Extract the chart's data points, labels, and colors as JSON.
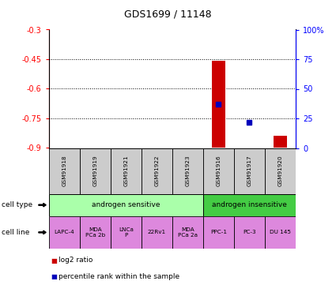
{
  "title": "GDS1699 / 11148",
  "samples": [
    "GSM91918",
    "GSM91919",
    "GSM91921",
    "GSM91922",
    "GSM91923",
    "GSM91916",
    "GSM91917",
    "GSM91920"
  ],
  "log2_ratio": [
    null,
    null,
    null,
    null,
    null,
    -0.46,
    null,
    -0.84
  ],
  "percentile_rank": [
    null,
    null,
    null,
    null,
    null,
    37,
    22,
    null
  ],
  "ylim_left": [
    -0.9,
    -0.3
  ],
  "ylim_right": [
    0,
    100
  ],
  "yticks_left": [
    -0.9,
    -0.75,
    -0.6,
    -0.45,
    -0.3
  ],
  "yticks_right": [
    0,
    25,
    50,
    75,
    100
  ],
  "ytick_labels_left": [
    "-0.9",
    "-0.75",
    "-0.6",
    "-0.45",
    "-0.3"
  ],
  "ytick_labels_right": [
    "0",
    "25",
    "50",
    "75",
    "100%"
  ],
  "grid_lines": [
    -0.45,
    -0.6,
    -0.75
  ],
  "cell_type_groups": [
    {
      "label": "androgen sensitive",
      "span": [
        0,
        5
      ],
      "color": "#aaffaa"
    },
    {
      "label": "androgen insensitive",
      "span": [
        5,
        8
      ],
      "color": "#44cc44"
    }
  ],
  "cell_lines": [
    "LAPC-4",
    "MDA\nPCa 2b",
    "LNCa\nP",
    "22Rv1",
    "MDA\nPCa 2a",
    "PPC-1",
    "PC-3",
    "DU 145"
  ],
  "cell_line_color": "#dd88dd",
  "sample_box_color": "#cccccc",
  "bar_color_log2": "#cc0000",
  "bar_color_pct": "#0000bb",
  "legend_items": [
    {
      "label": "log2 ratio",
      "color": "#cc0000"
    },
    {
      "label": "percentile rank within the sample",
      "color": "#0000bb"
    }
  ]
}
